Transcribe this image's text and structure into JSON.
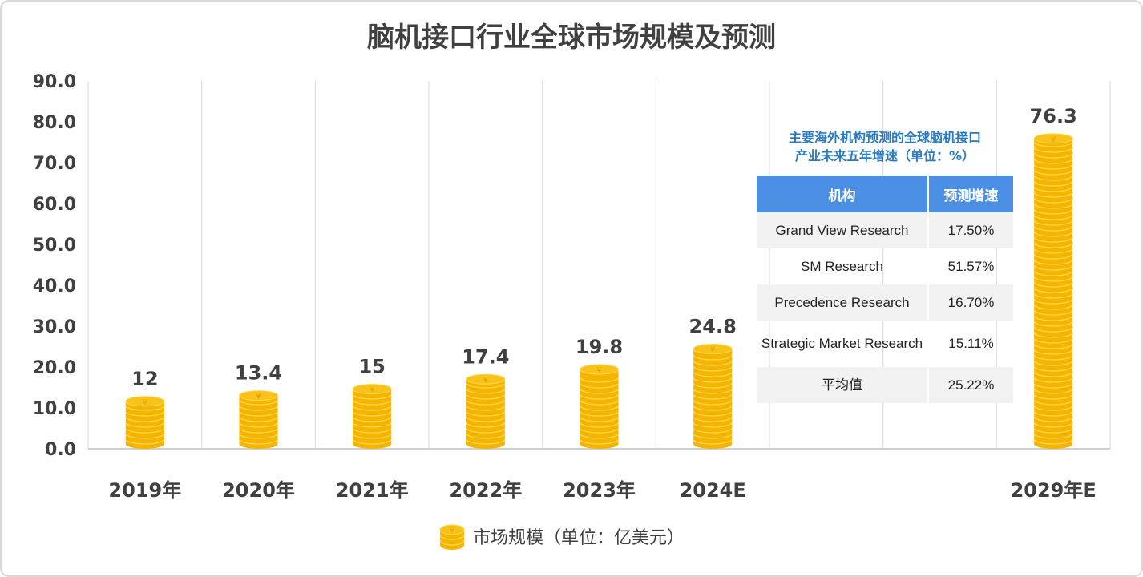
{
  "chart_data": {
    "type": "bar",
    "title": "脑机接口行业全球市场规模及预测",
    "categories": [
      "2019年",
      "2020年",
      "2021年",
      "2022年",
      "2023年",
      "2024E",
      "",
      "",
      "2029年E"
    ],
    "series": [
      {
        "name": "市场规模（单位：亿美元）",
        "values": [
          12,
          13.4,
          15,
          17.4,
          19.8,
          24.8,
          null,
          null,
          76.3
        ]
      }
    ],
    "data_labels": [
      "12",
      "13.4",
      "15",
      "17.4",
      "19.8",
      "24.8",
      "",
      "",
      "76.3"
    ],
    "ylim": [
      0,
      90
    ],
    "yticks": [
      "0.0",
      "10.0",
      "20.0",
      "30.0",
      "40.0",
      "50.0",
      "60.0",
      "70.0",
      "80.0",
      "90.0"
    ],
    "grid": "vertical",
    "legend": "bottom",
    "bar_style": "coin-stack",
    "colors": {
      "coin": "#f5b400",
      "coin_stripe": "#ffd84a",
      "text": "#404040",
      "grid": "#d9d9d9"
    }
  },
  "table": {
    "title_line1": "主要海外机构预测的全球脑机接口",
    "title_line2": "产业未来五年增速（单位：%）",
    "headers": [
      "机构",
      "预测增速"
    ],
    "rows": [
      [
        "Grand View Research",
        "17.50%"
      ],
      [
        "SM Research",
        "51.57%"
      ],
      [
        "Precedence Research",
        "16.70%"
      ],
      [
        "Strategic Market Research",
        "15.11%"
      ],
      [
        "平均值",
        "25.22%"
      ]
    ],
    "colors": {
      "header": "#4a8fe3",
      "title": "#2a7ac0"
    }
  }
}
